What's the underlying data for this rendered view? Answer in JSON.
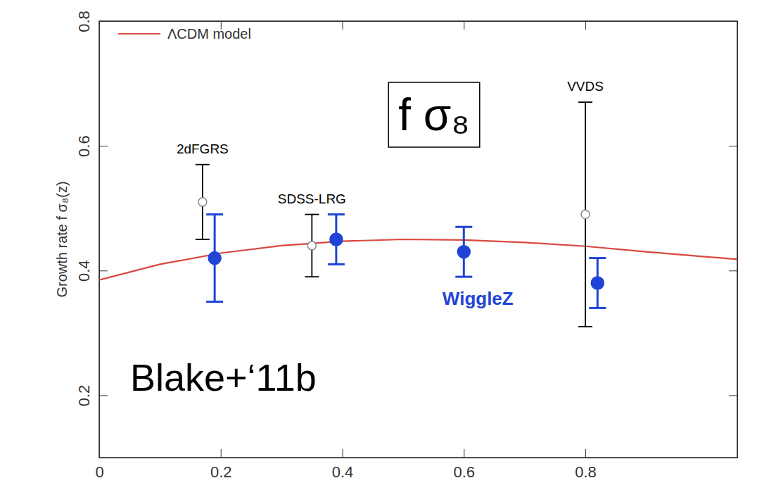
{
  "chart_data": {
    "type": "scatter",
    "y_label": "Growth rate f σ₈(z)",
    "annotations": [
      "f σ₈",
      "Blake+‘11b"
    ],
    "xlim": [
      0,
      1.05
    ],
    "xticks": [
      0,
      0.2,
      0.4,
      0.6,
      0.8
    ],
    "ylim": [
      0.1,
      0.8
    ],
    "yticks": [
      0.2,
      0.4,
      0.6,
      0.8
    ],
    "legend": "upper left",
    "series": [
      {
        "name": "ΛCDM model",
        "type": "line",
        "color": "#d9473f",
        "line_style": "solid",
        "x": [
          0,
          0.1,
          0.2,
          0.3,
          0.4,
          0.5,
          0.6,
          0.7,
          0.8,
          0.9,
          1.0,
          1.05
        ],
        "values": [
          0.385,
          0.41,
          0.428,
          0.44,
          0.447,
          0.45,
          0.449,
          0.445,
          0.439,
          0.43,
          0.422,
          0.418
        ]
      },
      {
        "name": "2dFGRS",
        "type": "scatter",
        "color": "#000000",
        "marker": "open circle",
        "x": [
          0.17
        ],
        "values": [
          0.51
        ],
        "errors": [
          0.06
        ]
      },
      {
        "name": "SDSS-LRG",
        "type": "scatter",
        "color": "#000000",
        "marker": "open circle",
        "x": [
          0.35
        ],
        "values": [
          0.44
        ],
        "errors": [
          0.05
        ]
      },
      {
        "name": "VVDS",
        "type": "scatter",
        "color": "#000000",
        "marker": "open circle",
        "x": [
          0.8
        ],
        "values": [
          0.49
        ],
        "errors": [
          0.18
        ]
      },
      {
        "name": "WiggleZ",
        "type": "scatter",
        "color": "#1f44d6",
        "marker": "filled circle",
        "x": [
          0.19,
          0.39,
          0.6,
          0.82
        ],
        "values": [
          0.42,
          0.45,
          0.43,
          0.38
        ],
        "errors": [
          0.07,
          0.04,
          0.04,
          0.04
        ]
      }
    ]
  }
}
